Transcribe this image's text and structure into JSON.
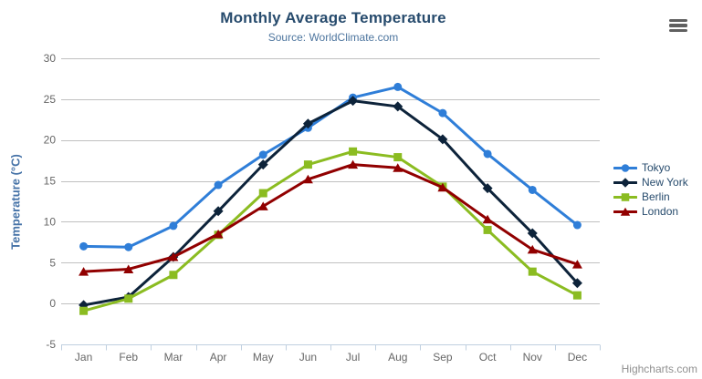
{
  "ui": {
    "credits": "Highcharts.com",
    "context_button_icon": "hamburger-menu-icon",
    "background_color": "#ffffff"
  },
  "chart_data": {
    "type": "line",
    "title": "Monthly Average Temperature",
    "subtitle": "Source: WorldClimate.com",
    "xlabel": "",
    "ylabel": "Temperature (°C)",
    "ylim": [
      -5,
      30
    ],
    "yticks": [
      -5,
      0,
      5,
      10,
      15,
      20,
      25,
      30
    ],
    "grid": true,
    "legend_position": "right",
    "categories": [
      "Jan",
      "Feb",
      "Mar",
      "Apr",
      "May",
      "Jun",
      "Jul",
      "Aug",
      "Sep",
      "Oct",
      "Nov",
      "Dec"
    ],
    "series": [
      {
        "name": "Tokyo",
        "color": "#2f7ed8",
        "marker": "circle",
        "values": [
          7.0,
          6.9,
          9.5,
          14.5,
          18.2,
          21.5,
          25.2,
          26.5,
          23.3,
          18.3,
          13.9,
          9.6
        ]
      },
      {
        "name": "New York",
        "color": "#0d233a",
        "marker": "diamond",
        "values": [
          -0.2,
          0.8,
          5.7,
          11.3,
          17.0,
          22.0,
          24.8,
          24.1,
          20.1,
          14.1,
          8.6,
          2.5
        ]
      },
      {
        "name": "Berlin",
        "color": "#8bbc21",
        "marker": "square",
        "values": [
          -0.9,
          0.6,
          3.5,
          8.4,
          13.5,
          17.0,
          18.6,
          17.9,
          14.3,
          9.0,
          3.9,
          1.0
        ]
      },
      {
        "name": "London",
        "color": "#910000",
        "marker": "triangle",
        "values": [
          3.9,
          4.2,
          5.7,
          8.5,
          11.9,
          15.2,
          17.0,
          16.6,
          14.2,
          10.3,
          6.6,
          4.8
        ]
      }
    ],
    "colors": {
      "grid_line": "#c0c0c0",
      "axis_line": "#c0d0e0",
      "tick_label": "#666666",
      "title": "#274b6d",
      "subtitle": "#4d759e",
      "axis_title": "#4572a7",
      "legend_text": "#274b6d",
      "credits": "#909090"
    }
  }
}
